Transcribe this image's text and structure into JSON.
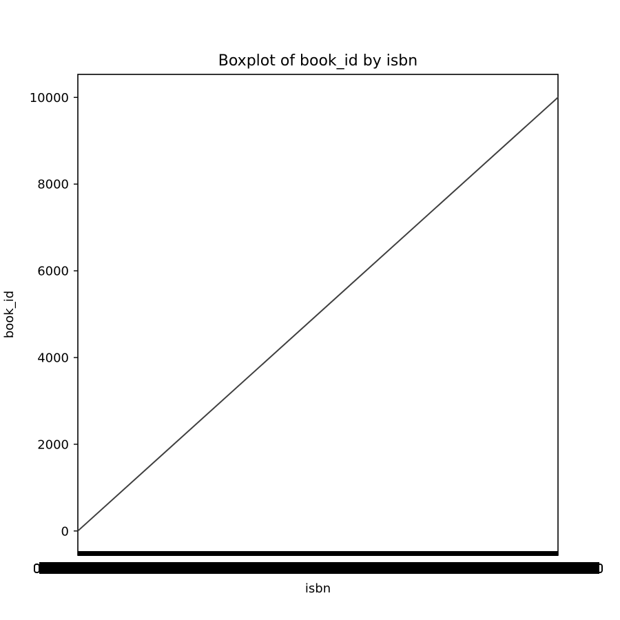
{
  "chart_data": {
    "type": "box",
    "title": "Boxplot of book_id by isbn",
    "xlabel": "isbn",
    "ylabel": "book_id",
    "ylim": [
      -560,
      10530
    ],
    "yticks": [
      0,
      2000,
      4000,
      6000,
      8000,
      10000
    ],
    "grid": false,
    "legend": "none",
    "x_tick_labels_overlapping": true,
    "trend": {
      "first_box": {
        "isbn_index": 0,
        "book_id": 1
      },
      "last_box": {
        "isbn_index": 9999,
        "book_id": 10000
      }
    },
    "box_count": 10000,
    "colors": {
      "boxes": "#3f3f3f",
      "axes": "#000000",
      "background": "#ffffff"
    }
  }
}
